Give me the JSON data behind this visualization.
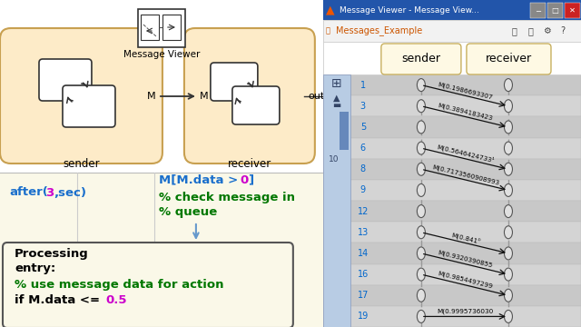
{
  "figsize": [
    6.4,
    3.6
  ],
  "dpi": 100,
  "left_top_bg": "#ffffff",
  "left_bottom_bg": "#faf8e8",
  "stateflow_box_fill": "#fdebc8",
  "stateflow_box_stroke": "#c8a050",
  "sender_label": "sender",
  "receiver_label": "receiver",
  "message_viewer_label": "Message Viewer",
  "window_title": "Message Viewer - Message View...",
  "model_name": "Messages_Example",
  "transition_label_blue": "#1a6fcc",
  "transition_label_magenta": "#cc00cc",
  "code_green": "#007700",
  "timeline_numbers": [
    "1",
    "3",
    "5",
    "6",
    "8",
    "9",
    "12",
    "13",
    "14",
    "16",
    "17",
    "19"
  ],
  "timeline_number_color": "#0066cc",
  "msg_arrows": [
    {
      "label": "M(0.1986693307",
      "r_start": 0,
      "r_end": 1
    },
    {
      "label": "M(0.3894183423",
      "r_start": 1,
      "r_end": 2
    },
    {
      "label": "M(0.5646424733¹",
      "r_start": 3,
      "r_end": 4
    },
    {
      "label": "M(0.7173560908993",
      "r_start": 4,
      "r_end": 5
    },
    {
      "label": "M(0.841⁰",
      "r_start": 7,
      "r_end": 8
    },
    {
      "label": "M(0.9320390855",
      "r_start": 8,
      "r_end": 9
    },
    {
      "label": "M(0.9854497299",
      "r_start": 9,
      "r_end": 10
    },
    {
      "label": "M(0.9995736030",
      "r_start": 11,
      "r_end": 12
    }
  ]
}
